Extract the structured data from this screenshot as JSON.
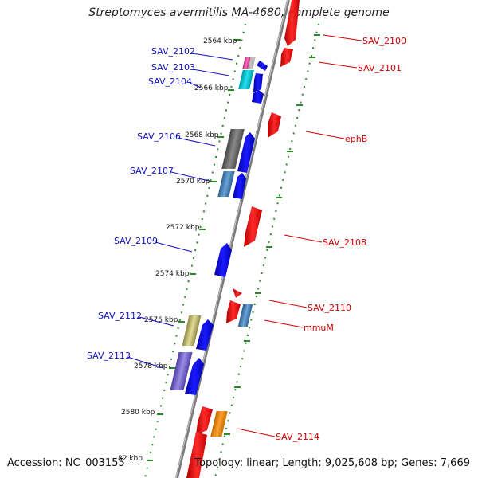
{
  "title": "Streptomyces avermitilis MA-4680, complete genome",
  "accession": "Accession: NC_003155",
  "summary": "Topology: linear; Length: 9,025,608 bp; Genes: 7,669",
  "colors": {
    "forward_label": "#d00000",
    "reverse_label": "#1010c0",
    "forward_strand": "#ff0000",
    "reverse_strand": "#0000ee",
    "axis": "#888888",
    "tick": "#2a8a2a"
  },
  "kbp_ticks": [
    "2564 kbp",
    "2566 kbp",
    "2568 kbp",
    "2570 kbp",
    "2572 kbp",
    "2574 kbp",
    "2576 kbp",
    "2578 kbp",
    "2580 kbp",
    "82 kbp"
  ],
  "genes_left": [
    "SAV_2102",
    "SAV_2103",
    "SAV_2104",
    "SAV_2106",
    "SAV_2107",
    "SAV_2109",
    "SAV_2112",
    "SAV_2113"
  ],
  "genes_right": [
    "SAV_2100",
    "SAV_2101",
    "ephB",
    "SAV_2108",
    "SAV_2110",
    "mmuM",
    "SAV_2114"
  ]
}
